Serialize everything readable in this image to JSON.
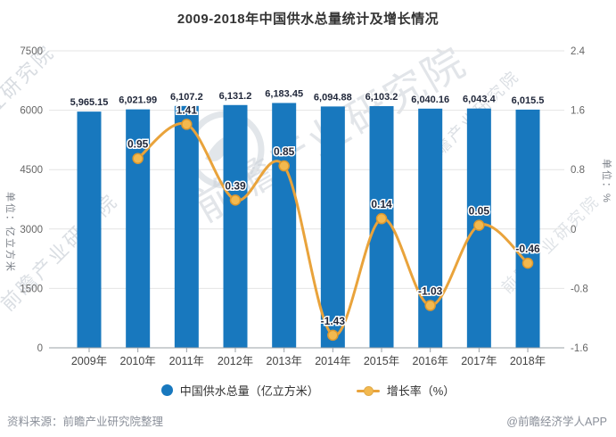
{
  "title": "2009-2018年中国供水总量统计及增长情况",
  "chart_data": {
    "type": "bar+line",
    "title": "2009-2018年中国供水总量统计及增长情况",
    "categories": [
      "2009年",
      "2010年",
      "2011年",
      "2012年",
      "2013年",
      "2014年",
      "2015年",
      "2016年",
      "2017年",
      "2018年"
    ],
    "series": [
      {
        "name": "中国供水总量（亿立方米）",
        "type": "bar",
        "axis": "left",
        "values": [
          5965.15,
          6021.99,
          6107.2,
          6131.2,
          6183.45,
          6094.88,
          6103.2,
          6040.16,
          6043.4,
          6015.5
        ],
        "labels": [
          "5,965.15",
          "6,021.99",
          "6,107.2",
          "6,131.2",
          "6,183.45",
          "6,094.88",
          "6,103.2",
          "6,040.16",
          "6,043.4",
          "6,015.5"
        ]
      },
      {
        "name": "增长率（%）",
        "type": "line",
        "axis": "right",
        "values": [
          null,
          0.95,
          1.41,
          0.39,
          0.85,
          -1.43,
          0.14,
          -1.03,
          0.05,
          -0.46
        ],
        "labels": [
          "",
          "0.95",
          "1.41",
          "0.39",
          "0.85",
          "-1.43",
          "0.14",
          "-1.03",
          "0.05",
          "-0.46"
        ]
      }
    ],
    "left_axis": {
      "name": "单位：亿立方米",
      "min": 0,
      "max": 7500,
      "ticks": [
        "0",
        "1500",
        "3000",
        "4500",
        "6000",
        "7500"
      ]
    },
    "right_axis": {
      "name": "单位：%",
      "min": -1.6,
      "max": 2.4,
      "ticks": [
        "-1.6",
        "-0.8",
        "0",
        "0.8",
        "1.6",
        "2.4"
      ]
    },
    "grid": true,
    "legend_position": "bottom"
  },
  "legend": {
    "items": [
      {
        "label": "中国供水总量（亿立方米）",
        "marker": "circle",
        "color": "#1878BE"
      },
      {
        "label": "增长率（%）",
        "marker": "line-dot",
        "color": "#E9A33B",
        "point_color": "#F3B94F"
      }
    ]
  },
  "footer": {
    "source": "资料来源：前瞻产业研究院整理",
    "credit": "@前瞻经济学人APP"
  },
  "watermark": {
    "brand": "前瞻产业研究院",
    "partial": "业研究院"
  },
  "colors": {
    "bar": "#1878BE",
    "line": "#E9A33B",
    "point_fill": "#F3B94F",
    "point_stroke": "#DD982E",
    "data_label": "#1F2639",
    "grid": "#E4E4E4",
    "axis_line": "#9AA0A6",
    "tick_text": "#666666",
    "x_text": "#444444",
    "title": "#333333",
    "footer": "#8A8F99",
    "watermark": "#CBD1D8"
  }
}
